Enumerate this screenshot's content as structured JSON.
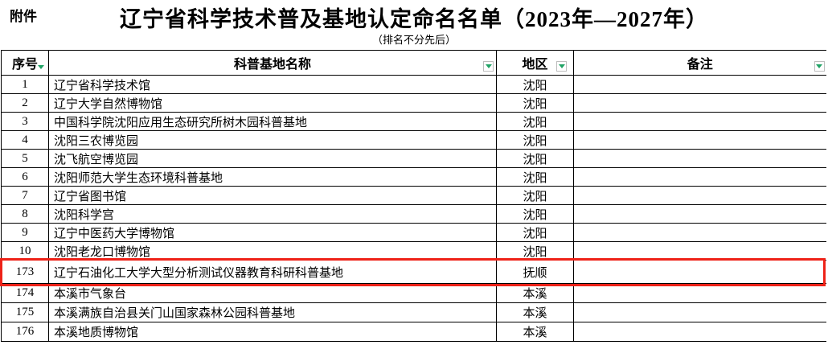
{
  "page": {
    "attachment_label": "附件",
    "title": "辽宁省科学技术普及基地认定命名名单（2023年—2027年）",
    "subtitle": "（排名不分先后）"
  },
  "table": {
    "columns": [
      {
        "label": "序号",
        "filter_icon": "filter-dropdown-icon"
      },
      {
        "label": "科普基地名称",
        "filter_icon": "filter-dropdown-icon"
      },
      {
        "label": "地区",
        "filter_icon": "filter-dropdown-icon"
      },
      {
        "label": "备注",
        "filter_icon": "filter-dropdown-icon"
      }
    ],
    "rows": [
      {
        "no": "1",
        "name": "辽宁省科学技术馆",
        "region": "沈阳",
        "remark": ""
      },
      {
        "no": "2",
        "name": "辽宁大学自然博物馆",
        "region": "沈阳",
        "remark": ""
      },
      {
        "no": "3",
        "name": "中国科学院沈阳应用生态研究所树木园科普基地",
        "region": "沈阳",
        "remark": ""
      },
      {
        "no": "4",
        "name": "沈阳三农博览园",
        "region": "沈阳",
        "remark": ""
      },
      {
        "no": "5",
        "name": "沈飞航空博览园",
        "region": "沈阳",
        "remark": ""
      },
      {
        "no": "6",
        "name": "沈阳师范大学生态环境科普基地",
        "region": "沈阳",
        "remark": ""
      },
      {
        "no": "7",
        "name": "辽宁省图书馆",
        "region": "沈阳",
        "remark": ""
      },
      {
        "no": "8",
        "name": "沈阳科学宫",
        "region": "沈阳",
        "remark": ""
      },
      {
        "no": "9",
        "name": "辽宁中医药大学博物馆",
        "region": "沈阳",
        "remark": ""
      },
      {
        "no": "10",
        "name": "沈阳老龙口博物馆",
        "region": "沈阳",
        "remark": ""
      },
      {
        "no": "173",
        "name": "辽宁石油化工大学大型分析测试仪器教育科研科普基地",
        "region": "抚顺",
        "remark": "",
        "highlighted": true
      },
      {
        "no": "174",
        "name": "本溪市气象台",
        "region": "本溪",
        "remark": ""
      },
      {
        "no": "175",
        "name": "本溪满族自治县关门山国家森林公园科普基地",
        "region": "本溪",
        "remark": ""
      },
      {
        "no": "176",
        "name": "本溪地质博物馆",
        "region": "本溪",
        "remark": ""
      }
    ]
  },
  "icons": {
    "filter_dropdown": "▼"
  },
  "colors": {
    "filter_green": "#21a366",
    "highlight_red": "#ee2218",
    "grid_line": "#000000"
  }
}
